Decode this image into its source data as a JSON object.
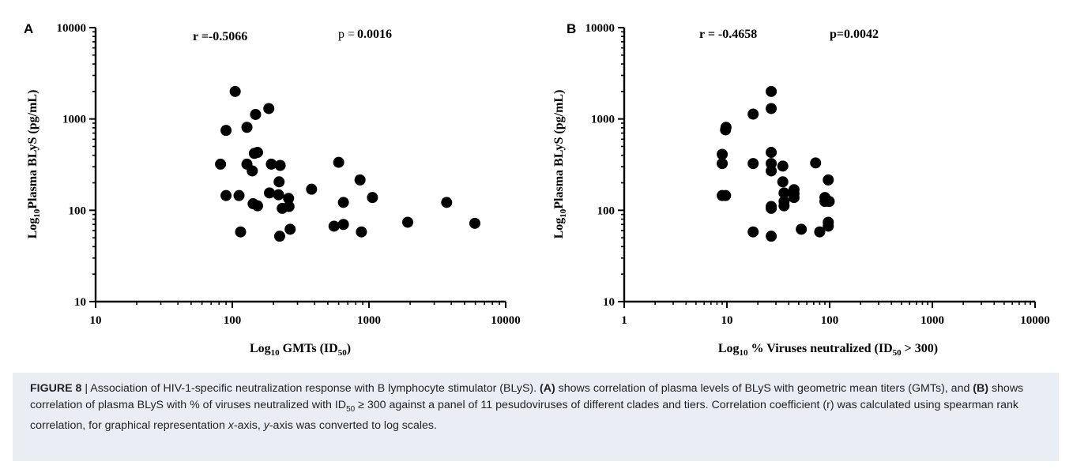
{
  "panels": [
    {
      "panel_label": "A",
      "stat_r": "r =-0.5066",
      "stat_p_prefix": "p =",
      "stat_p_value": "0.0016",
      "chart_data": {
        "type": "scatter",
        "xscale": "log",
        "yscale": "log",
        "xlim": [
          10,
          10000
        ],
        "ylim": [
          10,
          10000
        ],
        "xticks": [
          "10",
          "100",
          "1000",
          "10000"
        ],
        "yticks": [
          "10",
          "100",
          "1000",
          "10000"
        ],
        "xlabel_prefix": "Log",
        "xlabel_sub": "10",
        "xlabel_main": " GMTs (ID",
        "xlabel_sub2": "50",
        "xlabel_suffix": ")",
        "ylabel_prefix": "Log",
        "ylabel_sub": "10",
        "ylabel_main": "Plasma BLyS (pg/mL)",
        "points": [
          {
            "x": 105,
            "y": 2000
          },
          {
            "x": 185,
            "y": 1300
          },
          {
            "x": 148,
            "y": 1120
          },
          {
            "x": 128,
            "y": 810
          },
          {
            "x": 90,
            "y": 750
          },
          {
            "x": 145,
            "y": 420
          },
          {
            "x": 153,
            "y": 430
          },
          {
            "x": 82,
            "y": 320
          },
          {
            "x": 128,
            "y": 320
          },
          {
            "x": 193,
            "y": 320
          },
          {
            "x": 224,
            "y": 310
          },
          {
            "x": 600,
            "y": 335
          },
          {
            "x": 140,
            "y": 270
          },
          {
            "x": 220,
            "y": 205
          },
          {
            "x": 860,
            "y": 215
          },
          {
            "x": 380,
            "y": 170
          },
          {
            "x": 187,
            "y": 155
          },
          {
            "x": 90,
            "y": 145
          },
          {
            "x": 112,
            "y": 145
          },
          {
            "x": 218,
            "y": 148
          },
          {
            "x": 258,
            "y": 135
          },
          {
            "x": 1060,
            "y": 138
          },
          {
            "x": 142,
            "y": 118
          },
          {
            "x": 153,
            "y": 112
          },
          {
            "x": 260,
            "y": 110
          },
          {
            "x": 232,
            "y": 105
          },
          {
            "x": 650,
            "y": 122
          },
          {
            "x": 3700,
            "y": 122
          },
          {
            "x": 1920,
            "y": 74
          },
          {
            "x": 5950,
            "y": 72
          },
          {
            "x": 650,
            "y": 70
          },
          {
            "x": 555,
            "y": 67
          },
          {
            "x": 265,
            "y": 62
          },
          {
            "x": 115,
            "y": 58
          },
          {
            "x": 880,
            "y": 58
          },
          {
            "x": 222,
            "y": 52
          }
        ]
      }
    },
    {
      "panel_label": "B",
      "stat_r": "r = -0.4658",
      "stat_p_prefix": "",
      "stat_p_value": "p=0.0042",
      "chart_data": {
        "type": "scatter",
        "xscale": "log",
        "yscale": "log",
        "xlim": [
          1,
          10000
        ],
        "ylim": [
          10,
          10000
        ],
        "xticks": [
          "1",
          "10",
          "100",
          "1000",
          "10000"
        ],
        "yticks": [
          "10",
          "100",
          "1000",
          "10000"
        ],
        "xlabel_prefix": "Log",
        "xlabel_sub": "10",
        "xlabel_main": " % Viruses neutralized (ID",
        "xlabel_sub2": "50",
        "xlabel_suffix": " > 300)",
        "ylabel_prefix": "Log",
        "ylabel_sub": "10",
        "ylabel_main": "Plasma BLyS (pg/mL)",
        "points": [
          {
            "x": 27,
            "y": 2000
          },
          {
            "x": 27,
            "y": 1300
          },
          {
            "x": 18,
            "y": 1130
          },
          {
            "x": 9.8,
            "y": 810
          },
          {
            "x": 9.7,
            "y": 760
          },
          {
            "x": 27,
            "y": 430
          },
          {
            "x": 9,
            "y": 410
          },
          {
            "x": 9,
            "y": 325
          },
          {
            "x": 18,
            "y": 325
          },
          {
            "x": 27,
            "y": 325
          },
          {
            "x": 35,
            "y": 305
          },
          {
            "x": 73,
            "y": 330
          },
          {
            "x": 27,
            "y": 270
          },
          {
            "x": 35,
            "y": 205
          },
          {
            "x": 97,
            "y": 215
          },
          {
            "x": 45,
            "y": 168
          },
          {
            "x": 36,
            "y": 155
          },
          {
            "x": 45,
            "y": 152
          },
          {
            "x": 9,
            "y": 145
          },
          {
            "x": 9.7,
            "y": 145
          },
          {
            "x": 45,
            "y": 138
          },
          {
            "x": 90,
            "y": 138
          },
          {
            "x": 36,
            "y": 125
          },
          {
            "x": 90,
            "y": 125
          },
          {
            "x": 99,
            "y": 125
          },
          {
            "x": 36,
            "y": 112
          },
          {
            "x": 27,
            "y": 110
          },
          {
            "x": 27,
            "y": 105
          },
          {
            "x": 97,
            "y": 74
          },
          {
            "x": 97,
            "y": 67
          },
          {
            "x": 18,
            "y": 58
          },
          {
            "x": 53,
            "y": 62
          },
          {
            "x": 80,
            "y": 58
          },
          {
            "x": 27,
            "y": 52
          }
        ]
      }
    }
  ],
  "caption": {
    "figure_label": "FIGURE 8",
    "sep": " | ",
    "t1": "Association of HIV-1-specific neutralization response with B lymphocyte stimulator (BLyS). ",
    "a": "(A)",
    "t2": " shows correlation of plasma levels of BLyS with geometric mean titers (GMTs), and ",
    "b": "(B)",
    "t3": " shows correlation of plasma BLyS with % of viruses neutralized with ID",
    "sub": "50",
    "t4": " ≥ 300 against a panel of 11 pesudoviruses of different clades and tiers. Correlation coefficient (r) was calculated using spearman rank correlation, for graphical representation ",
    "xaxis": "x",
    "t5": "-axis, ",
    "yaxis": "y",
    "t6": "-axis was converted to log scales."
  }
}
